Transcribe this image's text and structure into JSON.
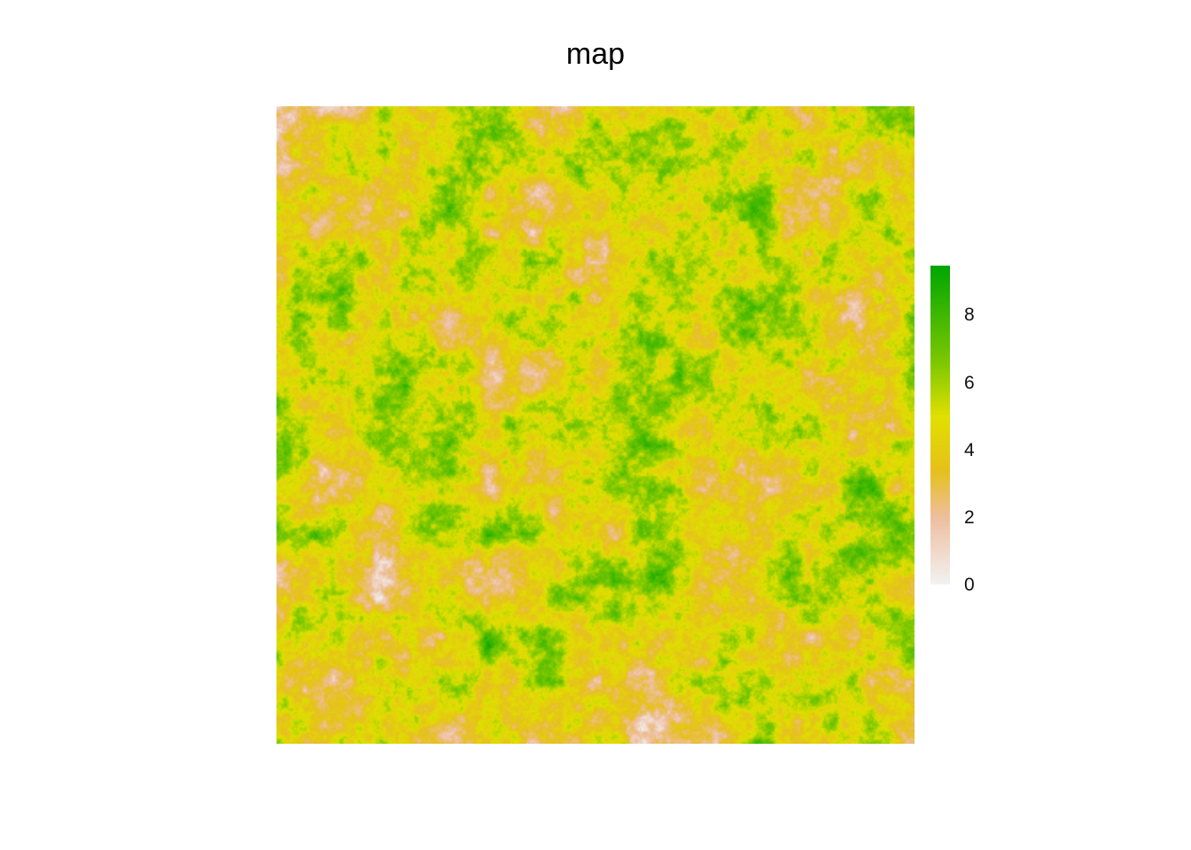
{
  "chart_data": {
    "type": "heatmap",
    "title": "map",
    "legend": {
      "placement": "right",
      "range": [
        0,
        9.5
      ],
      "ticks": [
        0,
        2,
        4,
        6,
        8
      ],
      "tick_labels": [
        "0",
        "2",
        "4",
        "6",
        "8"
      ],
      "colors": [
        "#f2f2f2",
        "#eebe9e",
        "#e6c01a",
        "#e0e000",
        "#7ec800",
        "#00a600"
      ]
    },
    "value_summary": {
      "min": 0,
      "max": 9.5,
      "dominant_range": [
        2,
        6
      ]
    }
  }
}
